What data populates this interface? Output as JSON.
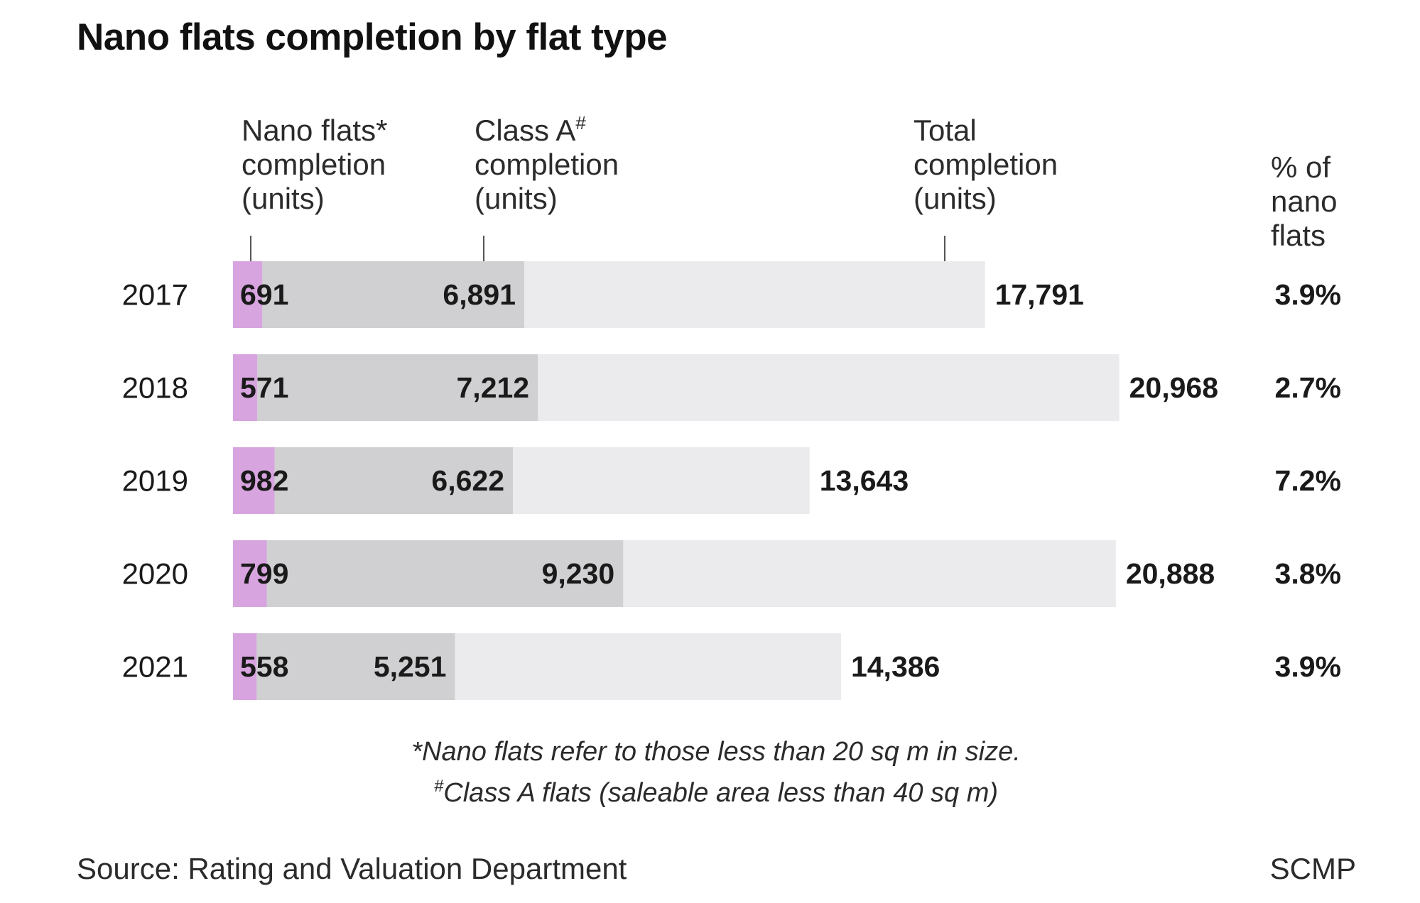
{
  "title": "Nano flats completion by flat type",
  "headers": {
    "nano": [
      "Nano flats*",
      "completion",
      "(units)"
    ],
    "classa_name": "Class A",
    "classa_mark": "#",
    "classa": [
      "completion",
      "(units)"
    ],
    "total": [
      "Total",
      "completion",
      "(units)"
    ],
    "pct": [
      "% of",
      "nano",
      "flats"
    ]
  },
  "notes": {
    "nano": "*Nano flats refer to those less than 20 sq m in size.",
    "classa_mark": "#",
    "classa": "Class A flats (saleable area less than 40 sq m)"
  },
  "source": "Source: Rating and Valuation Department",
  "brand": "SCMP",
  "colors": {
    "nano": "#d8a4e0",
    "classa": "#d0d0d2",
    "total": "#ebebed",
    "text": "#1a1a1a"
  },
  "chart_data": {
    "type": "bar",
    "orientation": "horizontal",
    "categories": [
      "2017",
      "2018",
      "2019",
      "2020",
      "2021"
    ],
    "series": [
      {
        "name": "Nano flats* completion (units)",
        "values": [
          691,
          571,
          982,
          799,
          558
        ]
      },
      {
        "name": "Class A completion (units)",
        "values": [
          6891,
          7212,
          6622,
          9230,
          5251
        ]
      },
      {
        "name": "Total completion (units)",
        "values": [
          17791,
          20968,
          13643,
          20888,
          14386
        ]
      }
    ],
    "labels": {
      "nano": [
        "691",
        "571",
        "982",
        "799",
        "558"
      ],
      "classa": [
        "6,891",
        "7,212",
        "6,622",
        "9,230",
        "5,251"
      ],
      "total": [
        "17,791",
        "20,968",
        "13,643",
        "20,888",
        "14,386"
      ],
      "pct": [
        "3.9%",
        "2.7%",
        "7.2%",
        "3.8%",
        "3.9%"
      ]
    },
    "percent_of_nano_flats": [
      3.9,
      2.7,
      7.2,
      3.8,
      3.9
    ],
    "xlim": [
      0,
      21000
    ],
    "grid": false
  }
}
